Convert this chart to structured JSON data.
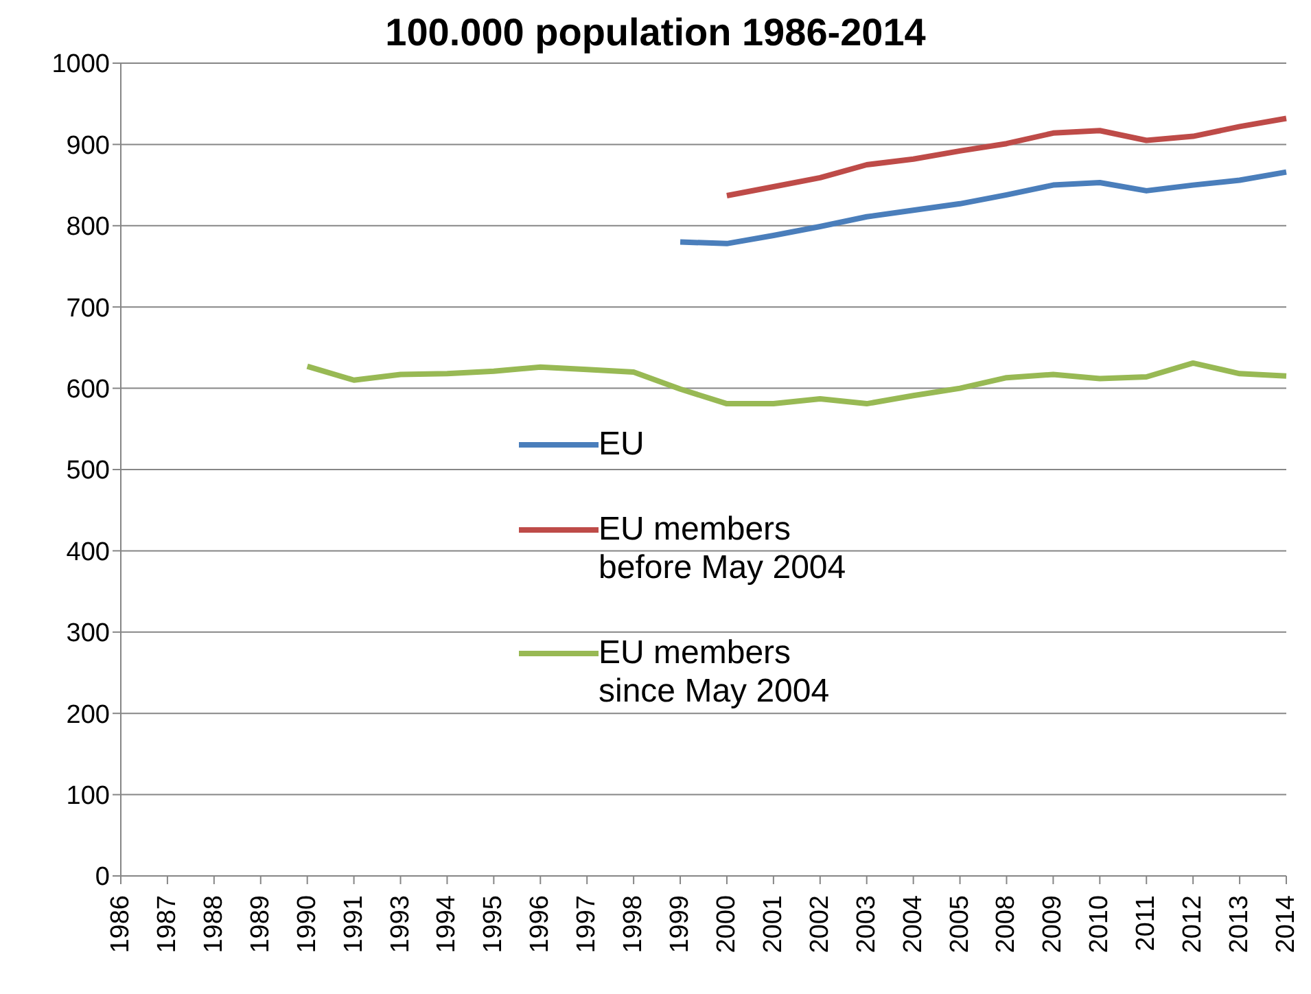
{
  "chart_data": {
    "type": "line",
    "title": "100.000 population 1986-2014",
    "categories": [
      "1986",
      "1987",
      "1988",
      "1989",
      "1990",
      "1991",
      "1993",
      "1994",
      "1995",
      "1996",
      "1997",
      "1998",
      "1999",
      "2000",
      "2001",
      "2002",
      "2003",
      "2004",
      "2005",
      "2008",
      "2009",
      "2010",
      "2011",
      "2012",
      "2013",
      "2014"
    ],
    "series": [
      {
        "name": "EU",
        "color": "#4a7ebb",
        "values": [
          null,
          null,
          null,
          null,
          null,
          null,
          null,
          null,
          null,
          null,
          null,
          null,
          780,
          778,
          788,
          799,
          811,
          819,
          827,
          838,
          850,
          853,
          843,
          850,
          856,
          866
        ]
      },
      {
        "name": "EU members before May 2004",
        "color": "#be4b48",
        "values": [
          null,
          null,
          null,
          null,
          null,
          null,
          null,
          null,
          null,
          null,
          null,
          null,
          null,
          837,
          848,
          859,
          875,
          882,
          892,
          901,
          914,
          917,
          905,
          910,
          922,
          932
        ]
      },
      {
        "name": "EU members since May 2004",
        "color": "#98b954",
        "values": [
          null,
          null,
          null,
          null,
          627,
          610,
          617,
          618,
          621,
          626,
          623,
          620,
          599,
          581,
          581,
          587,
          581,
          591,
          600,
          613,
          617,
          612,
          614,
          631,
          618,
          615
        ]
      }
    ],
    "ylim": [
      0,
      1000
    ],
    "yticks": [
      0,
      100,
      200,
      300,
      400,
      500,
      600,
      700,
      800,
      900,
      1000
    ],
    "grid": "y",
    "legend": "center",
    "marker": "none",
    "line_style": "solid"
  }
}
